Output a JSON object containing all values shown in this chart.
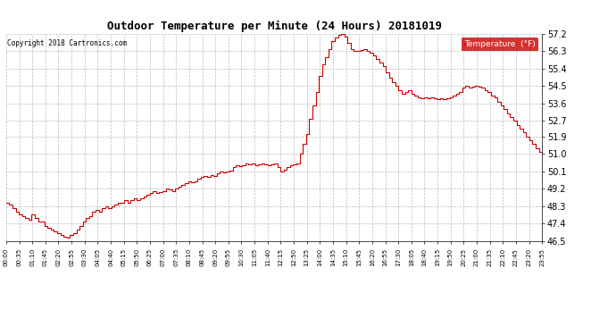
{
  "title": "Outdoor Temperature per Minute (24 Hours) 20181019",
  "copyright": "Copyright 2018 Cartronics.com",
  "legend_label": "Temperature  (°F)",
  "line_color": "#cc0000",
  "background_color": "#ffffff",
  "grid_color": "#aaaaaa",
  "ylim": [
    46.5,
    57.2
  ],
  "yticks": [
    46.5,
    47.4,
    48.3,
    49.2,
    50.1,
    51.0,
    51.9,
    52.7,
    53.6,
    54.5,
    55.4,
    56.3,
    57.2
  ],
  "xtick_labels": [
    "00:00",
    "00:35",
    "01:10",
    "01:45",
    "02:20",
    "02:55",
    "03:30",
    "04:05",
    "04:40",
    "05:15",
    "05:50",
    "06:25",
    "07:00",
    "07:35",
    "08:10",
    "08:45",
    "09:20",
    "09:55",
    "10:30",
    "11:05",
    "11:40",
    "12:15",
    "12:50",
    "13:25",
    "14:00",
    "14:35",
    "15:10",
    "15:45",
    "16:20",
    "16:55",
    "17:30",
    "18:05",
    "18:40",
    "19:15",
    "19:50",
    "20:25",
    "21:00",
    "21:35",
    "22:10",
    "22:45",
    "23:20",
    "23:55"
  ],
  "temperature_data": [
    48.5,
    48.4,
    48.2,
    48.0,
    47.9,
    47.8,
    47.7,
    47.6,
    47.9,
    47.7,
    47.5,
    47.5,
    47.3,
    47.2,
    47.1,
    47.0,
    46.9,
    46.8,
    46.75,
    46.7,
    46.8,
    46.9,
    47.1,
    47.3,
    47.5,
    47.7,
    47.8,
    48.0,
    48.1,
    48.0,
    48.2,
    48.3,
    48.2,
    48.3,
    48.4,
    48.5,
    48.5,
    48.6,
    48.5,
    48.6,
    48.7,
    48.6,
    48.7,
    48.8,
    48.9,
    49.0,
    49.1,
    49.0,
    49.05,
    49.1,
    49.2,
    49.15,
    49.1,
    49.2,
    49.3,
    49.4,
    49.5,
    49.6,
    49.55,
    49.6,
    49.7,
    49.8,
    49.85,
    49.8,
    49.9,
    49.85,
    50.0,
    50.1,
    50.05,
    50.1,
    50.15,
    50.3,
    50.4,
    50.35,
    50.4,
    50.5,
    50.45,
    50.5,
    50.4,
    50.45,
    50.5,
    50.45,
    50.4,
    50.45,
    50.5,
    50.3,
    50.1,
    50.2,
    50.3,
    50.4,
    50.45,
    50.5,
    51.0,
    51.5,
    52.0,
    52.8,
    53.5,
    54.2,
    55.0,
    55.6,
    56.0,
    56.4,
    56.8,
    57.0,
    57.15,
    57.2,
    57.05,
    56.7,
    56.4,
    56.3,
    56.3,
    56.35,
    56.4,
    56.3,
    56.2,
    56.05,
    55.9,
    55.7,
    55.5,
    55.2,
    54.9,
    54.7,
    54.5,
    54.3,
    54.1,
    54.2,
    54.3,
    54.1,
    54.0,
    53.9,
    53.85,
    53.9,
    53.85,
    53.9,
    53.85,
    53.8,
    53.85,
    53.8,
    53.85,
    53.9,
    54.0,
    54.1,
    54.2,
    54.4,
    54.5,
    54.4,
    54.45,
    54.5,
    54.45,
    54.4,
    54.3,
    54.2,
    54.0,
    53.9,
    53.7,
    53.5,
    53.3,
    53.1,
    52.9,
    52.7,
    52.5,
    52.3,
    52.1,
    51.9,
    51.7,
    51.5,
    51.3,
    51.1,
    51.0
  ]
}
